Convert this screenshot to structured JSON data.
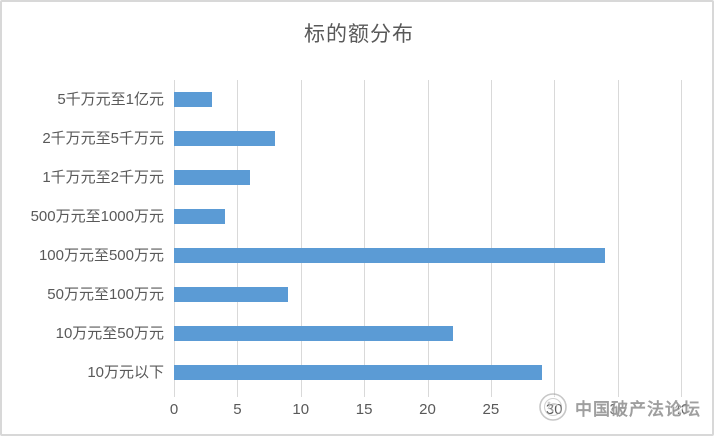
{
  "chart_data": {
    "type": "bar",
    "orientation": "horizontal",
    "title": "标的额分布",
    "categories": [
      "5千万元至1亿元",
      "2千万元至5千万元",
      "1千万元至2千万元",
      "500万元至1000万元",
      "100万元至500万元",
      "50万元至100万元",
      "10万元至50万元",
      "10万元以下"
    ],
    "values": [
      3,
      8,
      6,
      4,
      34,
      9,
      22,
      29
    ],
    "xlabel": "",
    "ylabel": "",
    "xlim": [
      0,
      40
    ],
    "xticks": [
      0,
      5,
      10,
      15,
      20,
      25,
      30,
      35,
      40
    ],
    "grid": true,
    "legend": "none",
    "bar_color": "#5b9bd5",
    "gridline_color": "#d9d9d9",
    "text_color": "#595959"
  },
  "watermark": {
    "text": "中国破产法论坛",
    "logo": "seal-logo"
  }
}
